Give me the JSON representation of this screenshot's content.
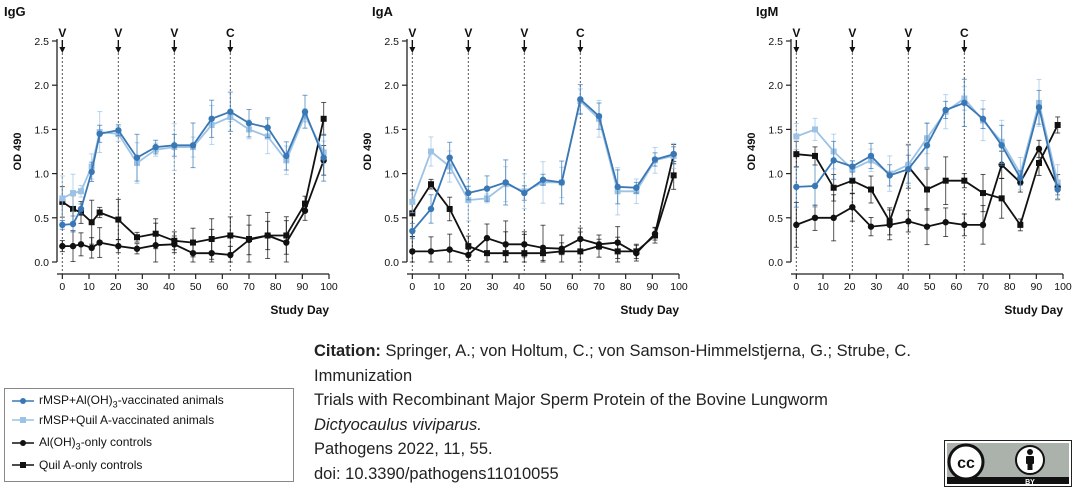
{
  "colors": {
    "dark_blue": "#3a78b5",
    "light_blue": "#9cc3e6",
    "black": "#111111",
    "grid_dash": "#555555"
  },
  "chart_data": [
    {
      "type": "line",
      "title": "IgG",
      "xlabel": "Study Day",
      "ylabel": "OD 490",
      "xlim": [
        -2,
        100
      ],
      "ylim": [
        0,
        2.5
      ],
      "xticks": [
        0,
        10,
        20,
        30,
        40,
        50,
        60,
        70,
        80,
        90,
        100
      ],
      "yticks": [
        0.0,
        0.5,
        1.0,
        1.5,
        2.0,
        2.5
      ],
      "event_markers": [
        {
          "day": 0,
          "label": "V"
        },
        {
          "day": 21,
          "label": "V"
        },
        {
          "day": 42,
          "label": "V"
        },
        {
          "day": 63,
          "label": "C"
        }
      ],
      "series": [
        {
          "name": "rMSP+Al(OH)3-vaccinated animals",
          "color": "#3a78b5",
          "marker": "circle",
          "x": [
            0,
            4,
            7,
            11,
            14,
            21,
            28,
            35,
            42,
            49,
            56,
            63,
            70,
            77,
            84,
            91,
            98
          ],
          "y": [
            0.42,
            0.43,
            0.6,
            1.02,
            1.45,
            1.49,
            1.18,
            1.3,
            1.32,
            1.32,
            1.62,
            1.7,
            1.57,
            1.52,
            1.2,
            1.7,
            1.18
          ]
        },
        {
          "name": "rMSP+Quil A-vaccinated animals",
          "color": "#9cc3e6",
          "marker": "square",
          "x": [
            0,
            4,
            7,
            11,
            14,
            21,
            28,
            35,
            42,
            49,
            56,
            63,
            70,
            77,
            84,
            91,
            98
          ],
          "y": [
            0.72,
            0.78,
            0.8,
            1.08,
            1.47,
            1.45,
            1.12,
            1.27,
            1.3,
            1.3,
            1.55,
            1.64,
            1.5,
            1.42,
            1.15,
            1.66,
            1.24
          ]
        },
        {
          "name": "Al(OH)3-only controls",
          "color": "#111111",
          "marker": "circle",
          "x": [
            0,
            4,
            7,
            11,
            14,
            21,
            28,
            35,
            42,
            49,
            56,
            63,
            70,
            77,
            84,
            91,
            98
          ],
          "y": [
            0.18,
            0.18,
            0.2,
            0.16,
            0.22,
            0.18,
            0.15,
            0.19,
            0.2,
            0.1,
            0.1,
            0.08,
            0.25,
            0.3,
            0.22,
            0.58,
            1.15
          ]
        },
        {
          "name": "Quil A-only controls",
          "color": "#111111",
          "marker": "square",
          "x": [
            0,
            4,
            7,
            11,
            14,
            21,
            28,
            35,
            42,
            49,
            56,
            63,
            70,
            77,
            84,
            91,
            98
          ],
          "y": [
            0.68,
            0.6,
            0.56,
            0.45,
            0.56,
            0.48,
            0.28,
            0.32,
            0.24,
            0.22,
            0.26,
            0.3,
            0.26,
            0.3,
            0.3,
            0.66,
            1.62
          ]
        }
      ]
    },
    {
      "type": "line",
      "title": "IgA",
      "xlabel": "Study Day",
      "ylabel": "OD 490",
      "xlim": [
        -2,
        100
      ],
      "ylim": [
        0,
        2.5
      ],
      "xticks": [
        0,
        10,
        20,
        30,
        40,
        50,
        60,
        70,
        80,
        90,
        100
      ],
      "yticks": [
        0.0,
        0.5,
        1.0,
        1.5,
        2.0,
        2.5
      ],
      "event_markers": [
        {
          "day": 0,
          "label": "V"
        },
        {
          "day": 21,
          "label": "V"
        },
        {
          "day": 42,
          "label": "V"
        },
        {
          "day": 63,
          "label": "C"
        }
      ],
      "series": [
        {
          "name": "rMSP+Al(OH)3-vaccinated animals",
          "color": "#3a78b5",
          "marker": "circle",
          "x": [
            0,
            7,
            14,
            21,
            28,
            35,
            42,
            49,
            56,
            63,
            70,
            77,
            84,
            91,
            98
          ],
          "y": [
            0.35,
            0.6,
            1.18,
            0.78,
            0.83,
            0.9,
            0.78,
            0.93,
            0.9,
            1.84,
            1.65,
            0.85,
            0.84,
            1.16,
            1.22
          ]
        },
        {
          "name": "rMSP+Quil A-vaccinated animals",
          "color": "#9cc3e6",
          "marker": "square",
          "x": [
            0,
            7,
            14,
            21,
            28,
            35,
            42,
            49,
            56,
            63,
            70,
            77,
            84,
            91,
            98
          ],
          "y": [
            0.68,
            1.25,
            1.08,
            0.7,
            0.72,
            0.88,
            0.8,
            0.9,
            0.9,
            1.82,
            1.62,
            0.8,
            0.8,
            1.15,
            1.2
          ]
        },
        {
          "name": "Al(OH)3-only controls",
          "color": "#111111",
          "marker": "circle",
          "x": [
            0,
            7,
            14,
            21,
            28,
            35,
            42,
            49,
            56,
            63,
            70,
            77,
            84,
            91,
            98
          ],
          "y": [
            0.12,
            0.12,
            0.14,
            0.08,
            0.27,
            0.2,
            0.2,
            0.16,
            0.15,
            0.26,
            0.2,
            0.22,
            0.1,
            0.32,
            1.22
          ]
        },
        {
          "name": "Quil A-only controls",
          "color": "#111111",
          "marker": "square",
          "x": [
            0,
            7,
            14,
            21,
            28,
            35,
            42,
            49,
            56,
            63,
            70,
            77,
            84,
            91,
            98
          ],
          "y": [
            0.55,
            0.88,
            0.6,
            0.18,
            0.1,
            0.1,
            0.1,
            0.1,
            0.12,
            0.12,
            0.18,
            0.12,
            0.12,
            0.3,
            0.98
          ]
        }
      ]
    },
    {
      "type": "line",
      "title": "IgM",
      "xlabel": "Study Day",
      "ylabel": "OD 490",
      "xlim": [
        -2,
        100
      ],
      "ylim": [
        0,
        2.5
      ],
      "xticks": [
        0,
        10,
        20,
        30,
        40,
        50,
        60,
        70,
        80,
        90,
        100
      ],
      "yticks": [
        0.0,
        0.5,
        1.0,
        1.5,
        2.0,
        2.5
      ],
      "event_markers": [
        {
          "day": 0,
          "label": "V"
        },
        {
          "day": 21,
          "label": "V"
        },
        {
          "day": 42,
          "label": "V"
        },
        {
          "day": 63,
          "label": "C"
        }
      ],
      "series": [
        {
          "name": "rMSP+Al(OH)3-vaccinated animals",
          "color": "#3a78b5",
          "marker": "circle",
          "x": [
            0,
            7,
            14,
            21,
            28,
            35,
            42,
            49,
            56,
            63,
            70,
            77,
            84,
            91,
            98
          ],
          "y": [
            0.85,
            0.86,
            1.15,
            1.08,
            1.2,
            0.98,
            1.05,
            1.32,
            1.72,
            1.8,
            1.62,
            1.32,
            0.95,
            1.75,
            0.82
          ]
        },
        {
          "name": "rMSP+Quil A-vaccinated animals",
          "color": "#9cc3e6",
          "marker": "square",
          "x": [
            0,
            7,
            14,
            21,
            28,
            35,
            42,
            49,
            56,
            63,
            70,
            77,
            84,
            91,
            98
          ],
          "y": [
            1.42,
            1.5,
            1.25,
            1.05,
            1.15,
            1.0,
            1.1,
            1.4,
            1.7,
            1.85,
            1.6,
            1.36,
            1.0,
            1.8,
            0.9
          ]
        },
        {
          "name": "Al(OH)3-only controls",
          "color": "#111111",
          "marker": "circle",
          "x": [
            0,
            7,
            14,
            21,
            28,
            35,
            42,
            49,
            56,
            63,
            70,
            77,
            84,
            91,
            98
          ],
          "y": [
            0.42,
            0.5,
            0.5,
            0.62,
            0.4,
            0.42,
            0.46,
            0.4,
            0.45,
            0.42,
            0.42,
            1.1,
            0.9,
            1.28,
            0.85
          ]
        },
        {
          "name": "Quil A-only controls",
          "color": "#111111",
          "marker": "square",
          "x": [
            0,
            7,
            14,
            21,
            28,
            35,
            42,
            49,
            56,
            63,
            70,
            77,
            84,
            91,
            98
          ],
          "y": [
            1.22,
            1.2,
            0.84,
            0.92,
            0.82,
            0.46,
            1.08,
            0.82,
            0.92,
            0.92,
            0.78,
            0.72,
            0.42,
            1.12,
            1.55
          ]
        }
      ]
    }
  ],
  "legend": {
    "items": [
      {
        "prefix": "rMSP+Al(OH)",
        "sub": "3",
        "suffix": "-vaccinated animals",
        "color": "#3a78b5",
        "marker": "circle"
      },
      {
        "prefix": "rMSP+Quil A-vaccinated animals",
        "sub": "",
        "suffix": "",
        "color": "#9cc3e6",
        "marker": "square"
      },
      {
        "prefix": "Al(OH)",
        "sub": "3",
        "suffix": "-only controls",
        "color": "#111111",
        "marker": "circle"
      },
      {
        "prefix": "Quil A-only controls",
        "sub": "",
        "suffix": "",
        "color": "#111111",
        "marker": "square"
      }
    ]
  },
  "citation": {
    "label": "Citation:",
    "authors": " Springer, A.; von Holtum, C.; von Samson-Himmelstjerna, G.; Strube, C.",
    "title_line1": "Immunization",
    "title_line2": "Trials with Recombinant Major Sperm Protein of the Bovine Lungworm",
    "species": "Dictyocaulus viviparus.",
    "journal": "Pathogens 2022, 11, 55.",
    "doi": "doi: 10.3390/pathogens11010055"
  },
  "license": {
    "cc_text": "cc",
    "by_text": "BY"
  }
}
